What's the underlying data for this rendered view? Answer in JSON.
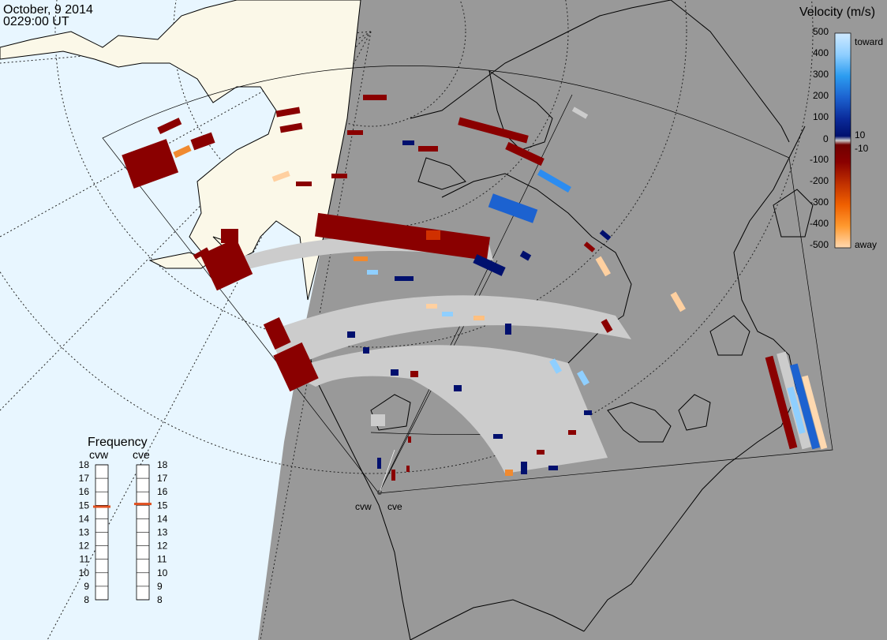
{
  "header": {
    "date": "October, 9 2014",
    "time": "0229:00 UT"
  },
  "colors": {
    "night": "#999999",
    "day_ocean": "#e8f6ff",
    "land_day": "#fbf8e8",
    "ground_scatter": "#cccccc"
  },
  "velocity_scale": {
    "title": "Velocity (m/s)",
    "ticks": [
      "500",
      "400",
      "300",
      "200",
      "100",
      "10",
      "0",
      "-10",
      "-100",
      "-200",
      "-300",
      "-400",
      "-500"
    ],
    "toward_label": "toward",
    "away_label": "away",
    "stops": [
      {
        "v": 500,
        "color": "#cfe9ff"
      },
      {
        "v": 400,
        "color": "#8fcfff"
      },
      {
        "v": 300,
        "color": "#2c9cf0"
      },
      {
        "v": 200,
        "color": "#1c62d0"
      },
      {
        "v": 100,
        "color": "#0a2a9a"
      },
      {
        "v": 10,
        "color": "#00106e"
      },
      {
        "v": 0,
        "color": "#cccccc"
      },
      {
        "v": -10,
        "color": "#700000"
      },
      {
        "v": -100,
        "color": "#8a0000"
      },
      {
        "v": -200,
        "color": "#c03000"
      },
      {
        "v": -300,
        "color": "#f06000"
      },
      {
        "v": -400,
        "color": "#ff9a30"
      },
      {
        "v": -500,
        "color": "#ffd9b0"
      }
    ]
  },
  "frequency": {
    "title": "Frequency",
    "radars": [
      {
        "code": "cvw",
        "mhz": 14.9
      },
      {
        "code": "cve",
        "mhz": 15.1
      }
    ],
    "levels": [
      "18",
      "17",
      "16",
      "15",
      "14",
      "13",
      "12",
      "11",
      "10",
      "9",
      "8"
    ],
    "marker_color": "#e05020"
  },
  "stations": [
    {
      "code": "cvw"
    },
    {
      "code": "cve"
    }
  ]
}
